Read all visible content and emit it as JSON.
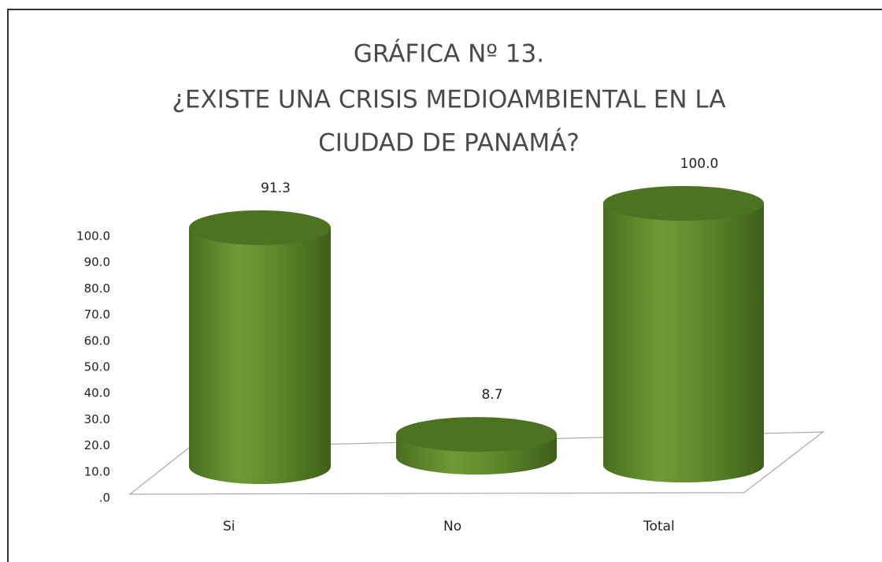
{
  "chart_data": {
    "type": "cylinder",
    "title": [
      "GRÁFICA Nº 13.",
      "¿EXISTE UNA CRISIS MEDIOAMBIENTAL EN LA",
      "CIUDAD DE PANAMÁ?"
    ],
    "categories": [
      "Si",
      "No",
      "Total"
    ],
    "values": [
      91.3,
      8.7,
      100.0
    ],
    "value_labels": [
      "91.3",
      "8.7",
      "100.0"
    ],
    "color": "#5e8a2c",
    "ylim": [
      0,
      100
    ],
    "yticks": [
      {
        "value": 0,
        "label": ".0"
      },
      {
        "value": 10,
        "label": "10.0"
      },
      {
        "value": 20,
        "label": "20.0"
      },
      {
        "value": 30,
        "label": "30.0"
      },
      {
        "value": 40,
        "label": "40.0"
      },
      {
        "value": 50,
        "label": "50.0"
      },
      {
        "value": 60,
        "label": "60.0"
      },
      {
        "value": 70,
        "label": "70.0"
      },
      {
        "value": 80,
        "label": "80.0"
      },
      {
        "value": 90,
        "label": "90.0"
      },
      {
        "value": 100,
        "label": "100.0"
      }
    ]
  }
}
